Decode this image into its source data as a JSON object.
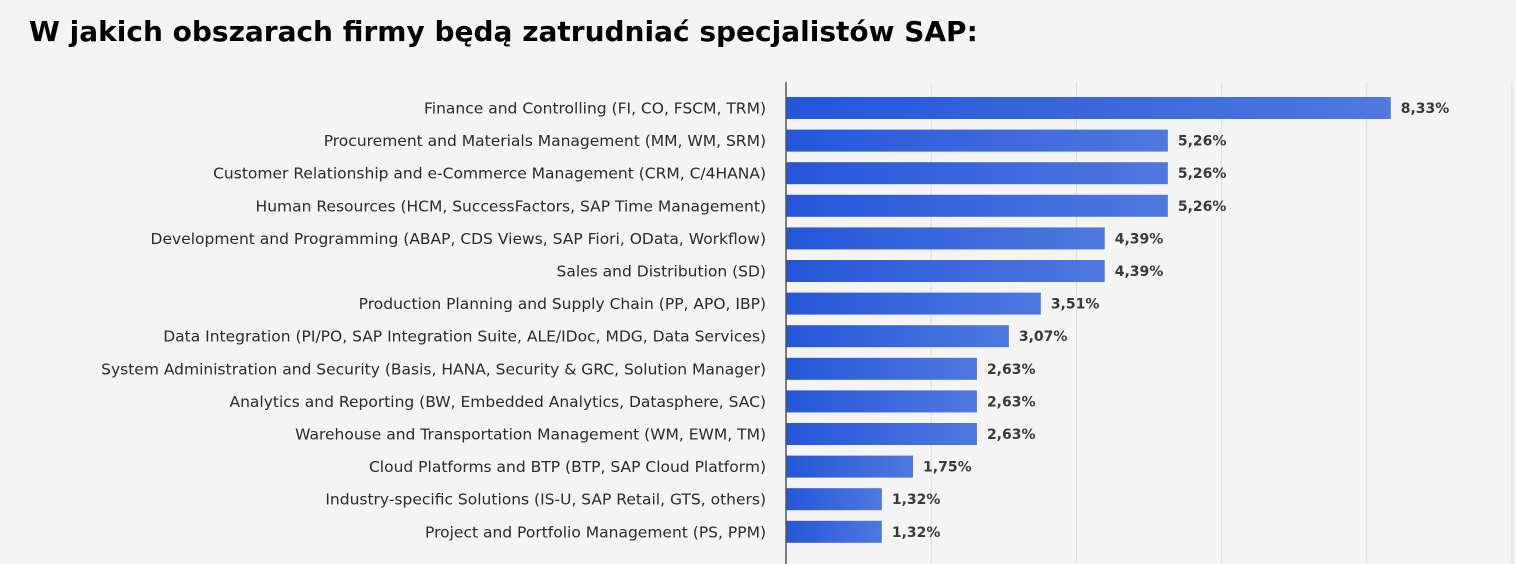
{
  "title": "W jakich obszarach firmy będą zatrudniać specjalistów SAP:",
  "colors": {
    "background": "#f4f4f4",
    "bar_start": "#2456d8",
    "bar_end": "#4f78e0",
    "gridline": "#dcdcdc",
    "axis": "#555555"
  },
  "chart_data": {
    "type": "bar",
    "orientation": "horizontal",
    "title": "W jakich obszarach firmy będą zatrudniać specjalistów SAP:",
    "xlabel": "",
    "ylabel": "",
    "xlim": [
      0,
      10
    ],
    "grid": true,
    "categories": [
      "Finance and Controlling (FI, CO, FSCM, TRM)",
      "Procurement and Materials Management (MM, WM, SRM)",
      "Customer Relationship and e-Commerce Management (CRM, C/4HANA)",
      "Human Resources (HCM, SuccessFactors, SAP Time Management)",
      "Development and Programming (ABAP, CDS Views, SAP Fiori, OData, Workflow)",
      "Sales and Distribution (SD)",
      "Production Planning and Supply Chain (PP, APO, IBP)",
      "Data Integration (PI/PO, SAP Integration Suite, ALE/IDoc, MDG, Data Services)",
      "System Administration and Security (Basis, HANA, Security & GRC, Solution Manager)",
      "Analytics and Reporting (BW, Embedded Analytics, Datasphere, SAC)",
      "Warehouse and Transportation Management (WM, EWM, TM)",
      "Cloud Platforms and BTP (BTP, SAP Cloud Platform)",
      "Industry-specific Solutions (IS-U, SAP Retail, GTS, others)",
      "Project and Portfolio Management (PS, PPM)"
    ],
    "values": [
      8.33,
      5.26,
      5.26,
      5.26,
      4.39,
      4.39,
      3.51,
      3.07,
      2.63,
      2.63,
      2.63,
      1.75,
      1.32,
      1.32
    ],
    "value_labels": [
      "8,33%",
      "5,26%",
      "5,26%",
      "5,26%",
      "4,39%",
      "4,39%",
      "3,51%",
      "3,07%",
      "2,63%",
      "2,63%",
      "2,63%",
      "1,75%",
      "1,32%",
      "1,32%"
    ]
  }
}
